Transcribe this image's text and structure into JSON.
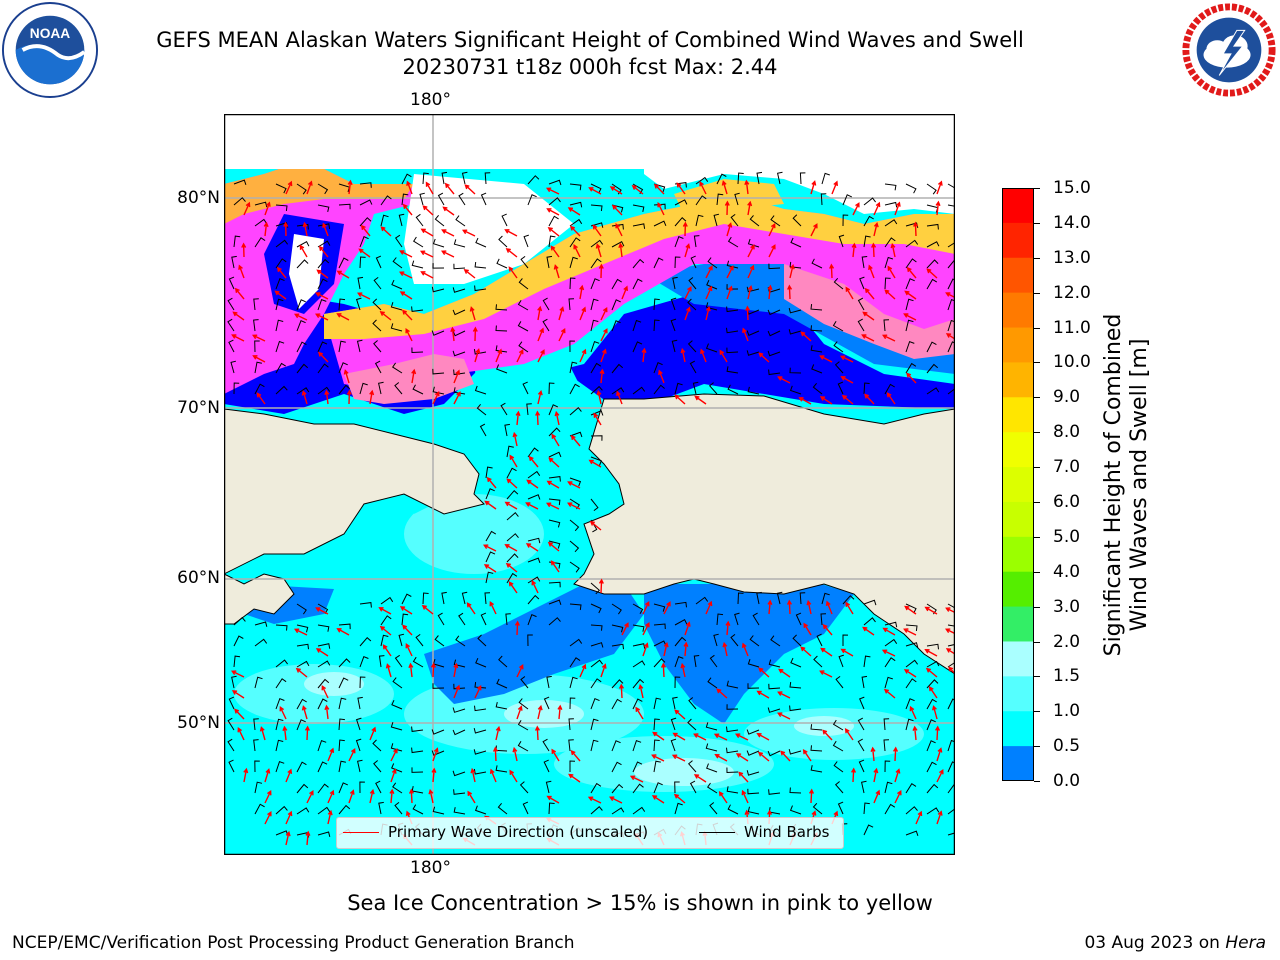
{
  "header": {
    "title": "GEFS MEAN Alaskan Waters Significant Height of Combined Wind Waves and Swell",
    "subtitle": "20230731 t18z 000h fcst   Max: 2.44"
  },
  "logos": {
    "noaa_ring_text": "NATIONAL OCEANIC AND ATMOSPHERIC ADMINISTRATION",
    "noaa_ring_bottom": "U.S. DEPARTMENT OF COMMERCE",
    "noaa_center": "NOAA",
    "nws_ring_text": "NATIONAL WEATHER SERVICE"
  },
  "map": {
    "longitude_label_top": "180°",
    "longitude_label_bottom": "180°",
    "latitude_labels": [
      "80°N",
      "70°N",
      "60°N",
      "50°N"
    ],
    "land_color": "#efecdc",
    "sea_ice_colors": [
      "#ff44ff",
      "#ff88c0",
      "#ffb040",
      "#ffd040"
    ]
  },
  "legend": {
    "wave_label": "Primary Wave Direction (unscaled)",
    "wave_color": "#ff0000",
    "wind_label": "Wind Barbs",
    "wind_color": "#000000"
  },
  "colorbar": {
    "label_line1": "Significant Height of Combined",
    "label_line2": "Wind Waves and Swell [m]",
    "ticks": [
      "15.0",
      "14.0",
      "13.0",
      "12.0",
      "11.0",
      "10.0",
      "9.0",
      "8.0",
      "7.0",
      "6.0",
      "5.0",
      "4.0",
      "3.0",
      "2.0",
      "1.5",
      "1.0",
      "0.5",
      "0.0"
    ],
    "colors_top_to_bottom": [
      "#ff0000",
      "#ff2400",
      "#ff5500",
      "#ff7a00",
      "#ff9900",
      "#ffb400",
      "#ffe600",
      "#f0ff00",
      "#dcff00",
      "#c8ff00",
      "#9bff00",
      "#55ee00",
      "#00dd00",
      "#33ee66",
      "#55ff99",
      "#aaffff",
      "#55ffff",
      "#00ffff",
      "#0080ff",
      "#0000ff"
    ]
  },
  "footer": {
    "sea_ice_note": "Sea Ice Concentration > 15% is shown in pink to yellow",
    "left": "NCEP/EMC/Verification Post Processing Product Generation Branch",
    "right_prefix": "03 Aug 2023 on ",
    "right_host": "Hera"
  }
}
